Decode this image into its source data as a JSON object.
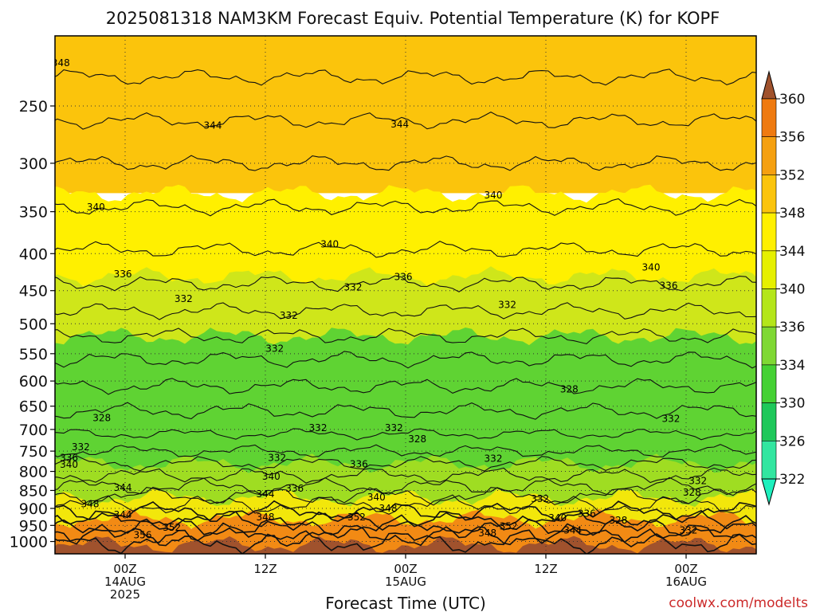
{
  "chart_data": {
    "type": "contour",
    "title": "2025081318 NAM3KM Forecast Equiv. Potential Temperature (K) for KOPF",
    "xlabel": "Forecast Time (UTC)",
    "ylabel": "",
    "y_axis_levels_hPa": [
      250,
      300,
      350,
      400,
      450,
      500,
      550,
      600,
      650,
      700,
      750,
      800,
      850,
      900,
      950,
      1000
    ],
    "y_scale": "log-pressure (inverted)",
    "x_ticks": [
      {
        "label": "00Z",
        "sub": "14AUG",
        "sub2": "2025"
      },
      {
        "label": "12Z",
        "sub": "",
        "sub2": ""
      },
      {
        "label": "00Z",
        "sub": "15AUG",
        "sub2": ""
      },
      {
        "label": "12Z",
        "sub": "",
        "sub2": ""
      },
      {
        "label": "00Z",
        "sub": "16AUG",
        "sub2": ""
      }
    ],
    "x_tick_hours": [
      6,
      18,
      30,
      42,
      54
    ],
    "x_range_hours": [
      0,
      60
    ],
    "y_range_hPa": [
      200,
      1040
    ],
    "grid": true,
    "colorbar": {
      "labels": [
        360,
        356,
        352,
        348,
        344,
        340,
        336,
        334,
        330,
        326,
        322
      ],
      "colors": [
        "#a0522d",
        "#ef7a10",
        "#f5a010",
        "#fbc40c",
        "#fff000",
        "#e6f000",
        "#b4e61a",
        "#7fd833",
        "#45d133",
        "#1ec85a",
        "#32e6a0",
        "#1ef0be"
      ]
    },
    "layers": [
      {
        "p_top": 200,
        "p_bot": 330,
        "value": 346,
        "color": "#fbc40c"
      },
      {
        "p_top": 330,
        "p_bot": 430,
        "value": 342,
        "color": "#fff000"
      },
      {
        "p_top": 430,
        "p_bot": 520,
        "value": 337,
        "color": "#cfe61a"
      },
      {
        "p_top": 520,
        "p_bot": 780,
        "value": 331,
        "color": "#5fd333"
      },
      {
        "p_top": 780,
        "p_bot": 870,
        "value": 336,
        "color": "#9fdd22"
      },
      {
        "p_top": 870,
        "p_bot": 930,
        "value": 344,
        "color": "#f2e70b"
      },
      {
        "p_top": 930,
        "p_bot": 1010,
        "value": 353,
        "color": "#f28a14"
      },
      {
        "p_top": 1010,
        "p_bot": 1040,
        "value": 360,
        "color": "#a0522d"
      }
    ],
    "contour_labels": [
      {
        "text": "348",
        "h": 0.5,
        "p": 218
      },
      {
        "text": "344",
        "h": 13.5,
        "p": 266
      },
      {
        "text": "344",
        "h": 29.5,
        "p": 265
      },
      {
        "text": "340",
        "h": 3.5,
        "p": 345
      },
      {
        "text": "340",
        "h": 23.5,
        "p": 388
      },
      {
        "text": "340",
        "h": 37.5,
        "p": 332
      },
      {
        "text": "340",
        "h": 51,
        "p": 418
      },
      {
        "text": "336",
        "h": 5.8,
        "p": 427
      },
      {
        "text": "336",
        "h": 29.8,
        "p": 431
      },
      {
        "text": "336",
        "h": 52.5,
        "p": 443
      },
      {
        "text": "332",
        "h": 11,
        "p": 462
      },
      {
        "text": "332",
        "h": 25.5,
        "p": 445
      },
      {
        "text": "332",
        "h": 20,
        "p": 487
      },
      {
        "text": "332",
        "h": 38.7,
        "p": 471
      },
      {
        "text": "332",
        "h": 18.8,
        "p": 541
      },
      {
        "text": "328",
        "h": 4,
        "p": 675
      },
      {
        "text": "328",
        "h": 44,
        "p": 616
      },
      {
        "text": "332",
        "h": 22.5,
        "p": 697
      },
      {
        "text": "332",
        "h": 29,
        "p": 697
      },
      {
        "text": "332",
        "h": 52.7,
        "p": 677
      },
      {
        "text": "328",
        "h": 31,
        "p": 722
      },
      {
        "text": "332",
        "h": 2.2,
        "p": 740
      },
      {
        "text": "336",
        "h": 1.2,
        "p": 766
      },
      {
        "text": "340",
        "h": 1.2,
        "p": 783
      },
      {
        "text": "332",
        "h": 19,
        "p": 766
      },
      {
        "text": "336",
        "h": 26,
        "p": 782
      },
      {
        "text": "332",
        "h": 37.5,
        "p": 768
      },
      {
        "text": "340",
        "h": 18.5,
        "p": 813
      },
      {
        "text": "336",
        "h": 20.5,
        "p": 845
      },
      {
        "text": "344",
        "h": 5.8,
        "p": 843
      },
      {
        "text": "344",
        "h": 18,
        "p": 860
      },
      {
        "text": "340",
        "h": 27.5,
        "p": 869
      },
      {
        "text": "332",
        "h": 55,
        "p": 825
      },
      {
        "text": "328",
        "h": 54.5,
        "p": 855
      },
      {
        "text": "348",
        "h": 3,
        "p": 888
      },
      {
        "text": "332",
        "h": 41.5,
        "p": 873
      },
      {
        "text": "344",
        "h": 5.8,
        "p": 919
      },
      {
        "text": "348",
        "h": 28.5,
        "p": 900
      },
      {
        "text": "336",
        "h": 45.5,
        "p": 915
      },
      {
        "text": "348",
        "h": 18,
        "p": 925
      },
      {
        "text": "352",
        "h": 25.8,
        "p": 925
      },
      {
        "text": "340",
        "h": 43,
        "p": 928
      },
      {
        "text": "328",
        "h": 48.2,
        "p": 935
      },
      {
        "text": "352",
        "h": 10,
        "p": 956
      },
      {
        "text": "352",
        "h": 38.8,
        "p": 953
      },
      {
        "text": "344",
        "h": 44.3,
        "p": 965
      },
      {
        "text": "332",
        "h": 54.2,
        "p": 965
      },
      {
        "text": "356",
        "h": 7.5,
        "p": 980
      },
      {
        "text": "348",
        "h": 37,
        "p": 974
      }
    ]
  },
  "watermark": "coolwx.com/modelts"
}
